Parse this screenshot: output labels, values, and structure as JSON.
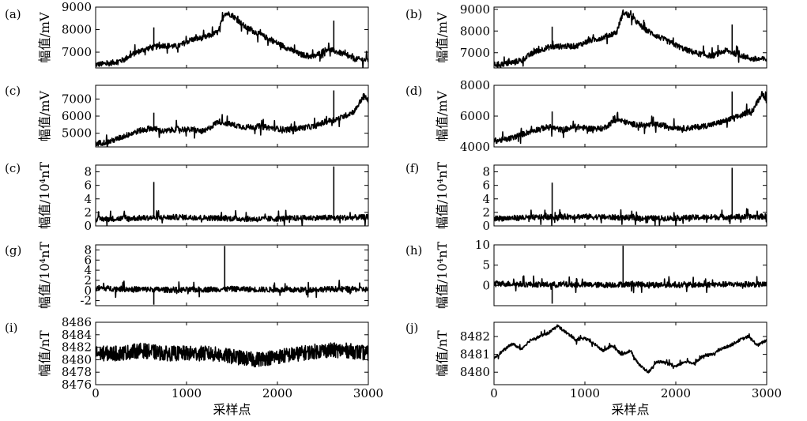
{
  "chart_data": [
    {
      "type": "line",
      "panel": "(a)",
      "ylabel": "幅值/mV",
      "xlim": [
        0,
        3000
      ],
      "ylim": [
        6300,
        9000
      ],
      "yticks": [
        7000,
        8000,
        9000
      ],
      "xticks": [],
      "xlabel": "",
      "series": [
        {
          "x": [
            0,
            150,
            300,
            450,
            600,
            750,
            900,
            1050,
            1200,
            1350,
            1420,
            1500,
            1650,
            1800,
            1950,
            2100,
            2250,
            2400,
            2550,
            2700,
            2850,
            3000
          ],
          "y": [
            6450,
            6500,
            6650,
            7000,
            7200,
            7300,
            7250,
            7550,
            7650,
            7900,
            8750,
            8650,
            8100,
            7800,
            7500,
            7200,
            6900,
            6800,
            7150,
            6950,
            6700,
            6650
          ]
        }
      ],
      "spikes": [
        {
          "x": 640,
          "y": 8100
        },
        {
          "x": 2620,
          "y": 8400
        }
      ]
    },
    {
      "type": "line",
      "panel": "(b)",
      "ylabel": "幅值/mV",
      "xlim": [
        0,
        3000
      ],
      "ylim": [
        6300,
        9100
      ],
      "yticks": [
        7000,
        8000,
        9000
      ],
      "xticks": [],
      "xlabel": "",
      "series": [
        {
          "x": [
            0,
            150,
            300,
            450,
            600,
            750,
            900,
            1050,
            1200,
            1350,
            1420,
            1500,
            1650,
            1800,
            1950,
            2100,
            2250,
            2400,
            2550,
            2700,
            2850,
            3000
          ],
          "y": [
            6450,
            6500,
            6650,
            7050,
            7250,
            7300,
            7300,
            7550,
            7700,
            7950,
            8850,
            8700,
            8100,
            7750,
            7450,
            7150,
            6950,
            6850,
            7100,
            6900,
            6700,
            6700
          ]
        }
      ],
      "spikes": [
        {
          "x": 640,
          "y": 8200
        },
        {
          "x": 2620,
          "y": 8300
        }
      ]
    },
    {
      "type": "line",
      "panel": "(c)",
      "ylabel": "幅值/mV",
      "xlim": [
        0,
        3000
      ],
      "ylim": [
        4200,
        7800
      ],
      "yticks": [
        5000,
        6000,
        7000
      ],
      "xticks": [],
      "xlabel": "",
      "series": [
        {
          "x": [
            0,
            150,
            300,
            450,
            600,
            750,
            900,
            1050,
            1200,
            1350,
            1500,
            1650,
            1800,
            1950,
            2100,
            2250,
            2400,
            2550,
            2700,
            2850,
            2950,
            3000
          ],
          "y": [
            4400,
            4500,
            4800,
            5100,
            5300,
            5100,
            5250,
            5200,
            5100,
            5700,
            5500,
            5350,
            5400,
            5300,
            5200,
            5300,
            5400,
            5700,
            5900,
            6300,
            7200,
            6900
          ]
        }
      ],
      "spikes": [
        {
          "x": 640,
          "y": 6200
        },
        {
          "x": 2620,
          "y": 7500
        }
      ]
    },
    {
      "type": "line",
      "panel": "(d)",
      "ylabel": "幅值/mV",
      "xlim": [
        0,
        3000
      ],
      "ylim": [
        4000,
        8000
      ],
      "yticks": [
        4000,
        6000,
        8000
      ],
      "xticks": [],
      "xlabel": "",
      "series": [
        {
          "x": [
            0,
            150,
            300,
            450,
            600,
            750,
            900,
            1050,
            1200,
            1350,
            1500,
            1650,
            1800,
            1950,
            2100,
            2250,
            2400,
            2550,
            2700,
            2850,
            2950,
            3000
          ],
          "y": [
            4400,
            4500,
            4800,
            5100,
            5300,
            5100,
            5300,
            5200,
            5200,
            5800,
            5500,
            5400,
            5450,
            5300,
            5200,
            5300,
            5450,
            5700,
            6000,
            6400,
            7500,
            7000
          ]
        }
      ],
      "spikes": [
        {
          "x": 640,
          "y": 6300
        },
        {
          "x": 2620,
          "y": 7600
        }
      ]
    },
    {
      "type": "line",
      "panel": "(c)",
      "ylabel": "幅值/10⁴nT",
      "xlim": [
        0,
        3000
      ],
      "ylim": [
        0,
        9
      ],
      "yticks": [
        0,
        2,
        4,
        6,
        8
      ],
      "xticks": [],
      "xlabel": "",
      "series": [
        {
          "x": [
            0,
            300,
            600,
            900,
            1200,
            1500,
            1800,
            2100,
            2400,
            2700,
            3000
          ],
          "y": [
            1.0,
            1.1,
            1.2,
            1.3,
            1.2,
            1.1,
            1.0,
            1.1,
            1.2,
            1.2,
            1.3
          ]
        }
      ],
      "spikes": [
        {
          "x": 640,
          "y": 6.5
        },
        {
          "x": 2620,
          "y": 8.8
        }
      ]
    },
    {
      "type": "line",
      "panel": "(f)",
      "ylabel": "幅值/10⁴nT",
      "xlim": [
        0,
        3000
      ],
      "ylim": [
        0,
        9
      ],
      "yticks": [
        0,
        2,
        4,
        6,
        8
      ],
      "xticks": [],
      "xlabel": "",
      "series": [
        {
          "x": [
            0,
            300,
            600,
            900,
            1200,
            1500,
            1800,
            2100,
            2400,
            2700,
            3000
          ],
          "y": [
            1.1,
            1.2,
            1.3,
            1.4,
            1.3,
            1.2,
            1.1,
            1.2,
            1.3,
            1.3,
            1.4
          ]
        }
      ],
      "spikes": [
        {
          "x": 640,
          "y": 6.4
        },
        {
          "x": 2620,
          "y": 8.6
        }
      ]
    },
    {
      "type": "line",
      "panel": "(g)",
      "ylabel": "幅值/10⁴nT",
      "xlim": [
        0,
        3000
      ],
      "ylim": [
        -3,
        9
      ],
      "yticks": [
        -2,
        0,
        2,
        4,
        6,
        8
      ],
      "xticks": [],
      "xlabel": "",
      "series": [
        {
          "x": [
            0,
            300,
            600,
            900,
            1200,
            1500,
            1800,
            2100,
            2400,
            2700,
            3000
          ],
          "y": [
            0.5,
            0.3,
            0.2,
            0.1,
            0.2,
            0.3,
            0.2,
            0.1,
            0.2,
            0.3,
            0.2
          ]
        }
      ],
      "spikes": [
        {
          "x": 640,
          "y": -2.8
        },
        {
          "x": 1420,
          "y": 8.8
        }
      ]
    },
    {
      "type": "line",
      "panel": "(h)",
      "ylabel": "幅值/10⁴nT",
      "xlim": [
        0,
        3000
      ],
      "ylim": [
        -5,
        10
      ],
      "yticks": [
        0,
        5,
        10
      ],
      "xticks": [],
      "xlabel": "",
      "series": [
        {
          "x": [
            0,
            300,
            600,
            900,
            1200,
            1500,
            1800,
            2100,
            2400,
            2700,
            3000
          ],
          "y": [
            0.5,
            0.3,
            0.2,
            0.2,
            0.1,
            0.3,
            0.2,
            0.1,
            0.2,
            0.3,
            0.2
          ]
        }
      ],
      "spikes": [
        {
          "x": 640,
          "y": -4.5
        },
        {
          "x": 1420,
          "y": 9.8
        }
      ]
    },
    {
      "type": "line",
      "panel": "(i)",
      "ylabel": "幅值/nT",
      "xlabel": "采样点",
      "xlim": [
        0,
        3000
      ],
      "ylim": [
        8476,
        8486
      ],
      "yticks": [
        8476,
        8478,
        8480,
        8482,
        8484,
        8486
      ],
      "xticks": [
        0,
        1000,
        2000,
        3000
      ],
      "series": [
        {
          "x": [
            0,
            250,
            500,
            750,
            1000,
            1250,
            1500,
            1750,
            2000,
            2250,
            2500,
            2750,
            3000
          ],
          "y": [
            8481,
            8481,
            8481.5,
            8481,
            8481,
            8481,
            8480.5,
            8480,
            8480.5,
            8481,
            8481.5,
            8481.5,
            8481
          ]
        }
      ]
    },
    {
      "type": "line",
      "panel": "(j)",
      "ylabel": "幅值/nT",
      "xlabel": "采样点",
      "xlim": [
        0,
        3000
      ],
      "ylim": [
        8479.3,
        8482.8
      ],
      "yticks": [
        8480,
        8481,
        8482
      ],
      "xticks": [
        0,
        1000,
        2000,
        3000
      ],
      "series": [
        {
          "x": [
            0,
            100,
            200,
            300,
            400,
            500,
            600,
            700,
            800,
            900,
            1000,
            1100,
            1200,
            1300,
            1400,
            1500,
            1600,
            1700,
            1800,
            1900,
            2000,
            2100,
            2200,
            2300,
            2400,
            2500,
            2600,
            2700,
            2800,
            2900,
            3000
          ],
          "y": [
            8480.8,
            8481.2,
            8481.6,
            8481.3,
            8481.8,
            8482.0,
            8482.2,
            8482.6,
            8482.2,
            8481.8,
            8481.9,
            8481.6,
            8481.2,
            8481.5,
            8481.0,
            8481.2,
            8480.4,
            8480.0,
            8480.6,
            8480.5,
            8480.3,
            8480.6,
            8480.5,
            8480.9,
            8481.0,
            8481.3,
            8481.5,
            8481.8,
            8482.0,
            8481.5,
            8481.8
          ]
        }
      ]
    }
  ]
}
